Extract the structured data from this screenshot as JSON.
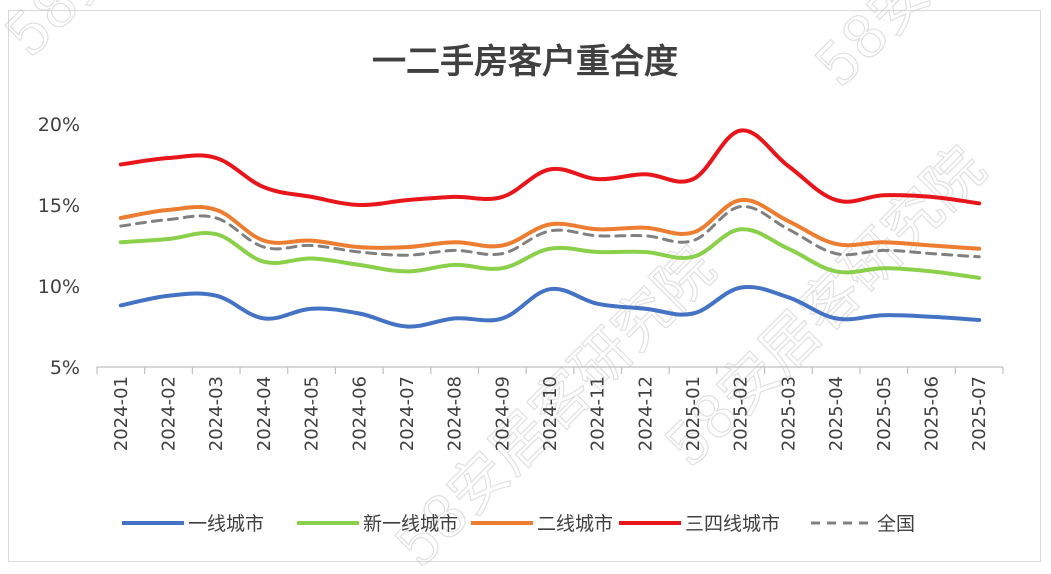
{
  "chart_data": {
    "type": "line",
    "title": "一二手房客户重合度",
    "xlabel": "",
    "ylabel": "",
    "ylim": [
      5,
      20
    ],
    "yticks": [
      "5%",
      "10%",
      "15%",
      "20%"
    ],
    "ytick_values": [
      5,
      10,
      15,
      20
    ],
    "categories": [
      "2024-01",
      "2024-02",
      "2024-03",
      "2024-04",
      "2024-05",
      "2024-06",
      "2024-07",
      "2024-08",
      "2024-09",
      "2024-10",
      "2024-11",
      "2024-12",
      "2025-01",
      "2025-02",
      "2025-03",
      "2025-04",
      "2025-05",
      "2025-06",
      "2025-07"
    ],
    "grid": false,
    "legend_position": "bottom",
    "series": [
      {
        "name": "一线城市",
        "color": "#4472C4",
        "dash": false,
        "values": [
          8.8,
          9.4,
          9.4,
          8.0,
          8.6,
          8.3,
          7.5,
          8.0,
          8.0,
          9.8,
          8.9,
          8.6,
          8.3,
          9.9,
          9.3,
          8.0,
          8.2,
          8.1,
          7.9
        ]
      },
      {
        "name": "新一线城市",
        "color": "#8BD04B",
        "dash": false,
        "values": [
          12.7,
          12.9,
          13.2,
          11.5,
          11.7,
          11.3,
          10.9,
          11.3,
          11.1,
          12.3,
          12.1,
          12.1,
          11.8,
          13.5,
          12.3,
          10.9,
          11.1,
          10.9,
          10.5
        ]
      },
      {
        "name": "二线城市",
        "color": "#ED7D31",
        "dash": false,
        "values": [
          14.2,
          14.7,
          14.7,
          12.8,
          12.8,
          12.4,
          12.4,
          12.7,
          12.5,
          13.8,
          13.5,
          13.6,
          13.3,
          15.3,
          14.0,
          12.6,
          12.7,
          12.5,
          12.3
        ]
      },
      {
        "name": "三四线城市",
        "color": "#E8151B",
        "dash": false,
        "values": [
          17.5,
          17.9,
          17.9,
          16.1,
          15.5,
          15.0,
          15.3,
          15.5,
          15.5,
          17.2,
          16.6,
          16.9,
          16.6,
          19.6,
          17.4,
          15.3,
          15.6,
          15.5,
          15.1
        ]
      },
      {
        "name": "全国",
        "color": "#808080",
        "dash": true,
        "values": [
          13.7,
          14.1,
          14.2,
          12.4,
          12.5,
          12.1,
          11.9,
          12.2,
          12.0,
          13.4,
          13.1,
          13.1,
          12.8,
          14.9,
          13.5,
          12.0,
          12.2,
          12.0,
          11.8
        ]
      }
    ]
  },
  "watermark": {
    "text": "58安居客研究院"
  }
}
